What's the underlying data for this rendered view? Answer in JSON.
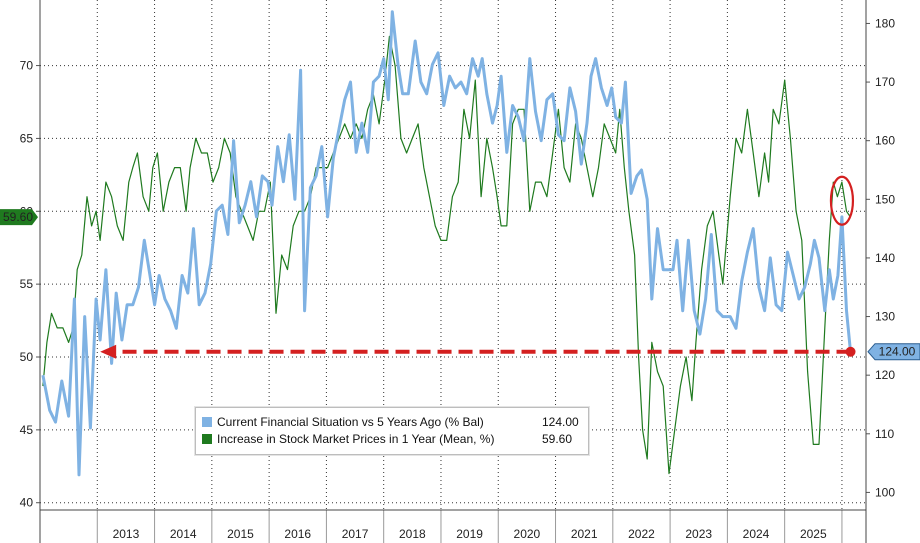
{
  "chart_data": {
    "type": "line",
    "x_axis": {
      "type": "time",
      "labels": [
        "2013",
        "2014",
        "2015",
        "2016",
        "2017",
        "2018",
        "2019",
        "2020",
        "2021",
        "2022",
        "2023",
        "2024",
        "2025"
      ]
    },
    "left_axis": {
      "ticks": [
        40,
        45,
        50,
        55,
        60,
        65,
        70
      ],
      "ylim": [
        39.5,
        74.5
      ]
    },
    "right_axis": {
      "ticks": [
        100,
        110,
        120,
        130,
        140,
        150,
        160,
        170,
        180
      ],
      "ylim": [
        97,
        184
      ]
    },
    "grid": true,
    "legend": {
      "placement": "bottom-center"
    },
    "series": [
      {
        "name": "Current Financial Situation vs 5 Years Ago (% Bal)",
        "axis": "right",
        "color": "#7fb2e3",
        "last_value_label": "124.00",
        "points": [
          [
            2012.05,
            120
          ],
          [
            2012.17,
            114
          ],
          [
            2012.27,
            112
          ],
          [
            2012.38,
            119
          ],
          [
            2012.5,
            113
          ],
          [
            2012.6,
            133
          ],
          [
            2012.68,
            103
          ],
          [
            2012.78,
            130
          ],
          [
            2012.88,
            111
          ],
          [
            2012.98,
            133
          ],
          [
            2013.05,
            126
          ],
          [
            2013.15,
            138
          ],
          [
            2013.25,
            122
          ],
          [
            2013.33,
            134
          ],
          [
            2013.43,
            126
          ],
          [
            2013.52,
            132
          ],
          [
            2013.62,
            132
          ],
          [
            2013.72,
            135
          ],
          [
            2013.82,
            143
          ],
          [
            2013.92,
            137
          ],
          [
            2014.0,
            132
          ],
          [
            2014.08,
            137
          ],
          [
            2014.18,
            133
          ],
          [
            2014.28,
            131
          ],
          [
            2014.38,
            128
          ],
          [
            2014.48,
            137
          ],
          [
            2014.58,
            134
          ],
          [
            2014.68,
            145
          ],
          [
            2014.78,
            132
          ],
          [
            2014.88,
            134
          ],
          [
            2014.98,
            139
          ],
          [
            2015.08,
            148
          ],
          [
            2015.18,
            149
          ],
          [
            2015.28,
            144
          ],
          [
            2015.38,
            160
          ],
          [
            2015.48,
            146
          ],
          [
            2015.58,
            149
          ],
          [
            2015.68,
            153
          ],
          [
            2015.78,
            147
          ],
          [
            2015.88,
            154
          ],
          [
            2015.98,
            153
          ],
          [
            2016.05,
            149
          ],
          [
            2016.15,
            159
          ],
          [
            2016.25,
            153
          ],
          [
            2016.35,
            161
          ],
          [
            2016.45,
            150
          ],
          [
            2016.55,
            172
          ],
          [
            2016.62,
            131
          ],
          [
            2016.72,
            152
          ],
          [
            2016.82,
            154
          ],
          [
            2016.92,
            159
          ],
          [
            2017.02,
            147
          ],
          [
            2017.12,
            157
          ],
          [
            2017.22,
            162
          ],
          [
            2017.32,
            167
          ],
          [
            2017.42,
            170
          ],
          [
            2017.52,
            158
          ],
          [
            2017.62,
            163
          ],
          [
            2017.72,
            158
          ],
          [
            2017.82,
            170
          ],
          [
            2017.92,
            171
          ],
          [
            2018.0,
            174
          ],
          [
            2018.08,
            167
          ],
          [
            2018.15,
            182
          ],
          [
            2018.25,
            173
          ],
          [
            2018.33,
            168
          ],
          [
            2018.43,
            168
          ],
          [
            2018.55,
            177
          ],
          [
            2018.65,
            170
          ],
          [
            2018.75,
            168
          ],
          [
            2018.85,
            173
          ],
          [
            2018.95,
            175
          ],
          [
            2019.05,
            166
          ],
          [
            2019.15,
            171
          ],
          [
            2019.25,
            169
          ],
          [
            2019.35,
            170
          ],
          [
            2019.45,
            168
          ],
          [
            2019.55,
            174
          ],
          [
            2019.65,
            171
          ],
          [
            2019.72,
            174
          ],
          [
            2019.8,
            168
          ],
          [
            2019.9,
            163
          ],
          [
            2019.98,
            166
          ],
          [
            2020.05,
            171
          ],
          [
            2020.15,
            158
          ],
          [
            2020.25,
            166
          ],
          [
            2020.35,
            164
          ],
          [
            2020.45,
            160
          ],
          [
            2020.55,
            174
          ],
          [
            2020.65,
            165
          ],
          [
            2020.75,
            160
          ],
          [
            2020.85,
            167
          ],
          [
            2020.95,
            168
          ],
          [
            2021.05,
            161
          ],
          [
            2021.15,
            160
          ],
          [
            2021.25,
            169
          ],
          [
            2021.35,
            165
          ],
          [
            2021.45,
            156
          ],
          [
            2021.55,
            163
          ],
          [
            2021.62,
            171
          ],
          [
            2021.7,
            174
          ],
          [
            2021.8,
            169
          ],
          [
            2021.9,
            166
          ],
          [
            2021.98,
            169
          ],
          [
            2022.05,
            164
          ],
          [
            2022.15,
            163
          ],
          [
            2022.22,
            170
          ],
          [
            2022.32,
            151
          ],
          [
            2022.42,
            154
          ],
          [
            2022.5,
            155
          ],
          [
            2022.6,
            150
          ],
          [
            2022.68,
            133
          ],
          [
            2022.78,
            145
          ],
          [
            2022.88,
            138
          ],
          [
            2022.98,
            138
          ],
          [
            2023.05,
            138
          ],
          [
            2023.12,
            143
          ],
          [
            2023.22,
            131
          ],
          [
            2023.32,
            143
          ],
          [
            2023.42,
            131
          ],
          [
            2023.52,
            127
          ],
          [
            2023.62,
            133
          ],
          [
            2023.72,
            144
          ],
          [
            2023.82,
            131
          ],
          [
            2023.92,
            130
          ],
          [
            2024.05,
            130
          ],
          [
            2024.15,
            128
          ],
          [
            2024.25,
            136
          ],
          [
            2024.35,
            141
          ],
          [
            2024.45,
            145
          ],
          [
            2024.55,
            135
          ],
          [
            2024.65,
            131
          ],
          [
            2024.75,
            140
          ],
          [
            2024.85,
            132
          ],
          [
            2024.95,
            131
          ],
          [
            2025.05,
            141
          ],
          [
            2025.15,
            137
          ],
          [
            2025.25,
            133
          ],
          [
            2025.35,
            135
          ],
          [
            2025.45,
            139
          ],
          [
            2025.52,
            143
          ],
          [
            2025.6,
            140
          ],
          [
            2025.7,
            131
          ],
          [
            2025.78,
            138
          ],
          [
            2025.85,
            133
          ],
          [
            2025.93,
            137
          ],
          [
            2026.0,
            147
          ],
          [
            2026.08,
            131
          ],
          [
            2026.15,
            124
          ]
        ]
      },
      {
        "name": "Increase in Stock Market Prices in 1 Year (Mean, %)",
        "axis": "left",
        "color": "#1f7a1f",
        "last_value_label": "59.60",
        "points": [
          [
            2012.05,
            48
          ],
          [
            2012.12,
            51
          ],
          [
            2012.2,
            53
          ],
          [
            2012.3,
            52
          ],
          [
            2012.4,
            52
          ],
          [
            2012.5,
            51
          ],
          [
            2012.58,
            52
          ],
          [
            2012.65,
            56
          ],
          [
            2012.73,
            57
          ],
          [
            2012.82,
            61
          ],
          [
            2012.9,
            59
          ],
          [
            2012.98,
            60
          ],
          [
            2013.05,
            58
          ],
          [
            2013.15,
            62
          ],
          [
            2013.25,
            61
          ],
          [
            2013.35,
            59
          ],
          [
            2013.45,
            58
          ],
          [
            2013.55,
            62
          ],
          [
            2013.62,
            63
          ],
          [
            2013.7,
            64
          ],
          [
            2013.8,
            61
          ],
          [
            2013.9,
            60
          ],
          [
            2013.97,
            63
          ],
          [
            2014.05,
            64
          ],
          [
            2014.15,
            60
          ],
          [
            2014.25,
            62
          ],
          [
            2014.35,
            63
          ],
          [
            2014.45,
            63
          ],
          [
            2014.55,
            60
          ],
          [
            2014.62,
            63
          ],
          [
            2014.72,
            65
          ],
          [
            2014.82,
            64
          ],
          [
            2014.92,
            64
          ],
          [
            2015.02,
            62
          ],
          [
            2015.12,
            63
          ],
          [
            2015.22,
            65
          ],
          [
            2015.32,
            64
          ],
          [
            2015.42,
            61
          ],
          [
            2015.52,
            60
          ],
          [
            2015.62,
            59
          ],
          [
            2015.72,
            58
          ],
          [
            2015.82,
            60
          ],
          [
            2015.92,
            60
          ],
          [
            2016.02,
            62
          ],
          [
            2016.12,
            53
          ],
          [
            2016.22,
            57
          ],
          [
            2016.32,
            56
          ],
          [
            2016.42,
            59
          ],
          [
            2016.52,
            60
          ],
          [
            2016.62,
            60
          ],
          [
            2016.72,
            61
          ],
          [
            2016.82,
            63
          ],
          [
            2016.92,
            63
          ],
          [
            2017.02,
            63
          ],
          [
            2017.12,
            64
          ],
          [
            2017.22,
            65
          ],
          [
            2017.32,
            66
          ],
          [
            2017.42,
            65
          ],
          [
            2017.52,
            66
          ],
          [
            2017.62,
            65
          ],
          [
            2017.72,
            67
          ],
          [
            2017.82,
            68
          ],
          [
            2017.92,
            66
          ],
          [
            2018.02,
            69
          ],
          [
            2018.1,
            72
          ],
          [
            2018.2,
            70
          ],
          [
            2018.3,
            65
          ],
          [
            2018.4,
            64
          ],
          [
            2018.5,
            65
          ],
          [
            2018.6,
            66
          ],
          [
            2018.7,
            63
          ],
          [
            2018.8,
            61
          ],
          [
            2018.9,
            59
          ],
          [
            2019.0,
            58
          ],
          [
            2019.1,
            58
          ],
          [
            2019.2,
            61
          ],
          [
            2019.3,
            62
          ],
          [
            2019.4,
            67
          ],
          [
            2019.5,
            65
          ],
          [
            2019.6,
            69
          ],
          [
            2019.7,
            61
          ],
          [
            2019.8,
            65
          ],
          [
            2019.9,
            63
          ],
          [
            2019.98,
            61
          ],
          [
            2020.05,
            59
          ],
          [
            2020.15,
            59
          ],
          [
            2020.25,
            66
          ],
          [
            2020.35,
            67
          ],
          [
            2020.45,
            67
          ],
          [
            2020.55,
            60
          ],
          [
            2020.65,
            62
          ],
          [
            2020.75,
            62
          ],
          [
            2020.85,
            61
          ],
          [
            2020.95,
            64
          ],
          [
            2021.05,
            67
          ],
          [
            2021.15,
            63
          ],
          [
            2021.25,
            62
          ],
          [
            2021.35,
            66
          ],
          [
            2021.45,
            65
          ],
          [
            2021.55,
            63
          ],
          [
            2021.65,
            61
          ],
          [
            2021.75,
            63
          ],
          [
            2021.85,
            66
          ],
          [
            2021.95,
            65
          ],
          [
            2022.05,
            64
          ],
          [
            2022.12,
            67
          ],
          [
            2022.2,
            63
          ],
          [
            2022.28,
            60
          ],
          [
            2022.38,
            57
          ],
          [
            2022.45,
            50
          ],
          [
            2022.52,
            45
          ],
          [
            2022.6,
            43
          ],
          [
            2022.68,
            51
          ],
          [
            2022.78,
            49
          ],
          [
            2022.88,
            48
          ],
          [
            2022.98,
            42
          ],
          [
            2023.08,
            45
          ],
          [
            2023.18,
            48
          ],
          [
            2023.28,
            50
          ],
          [
            2023.38,
            47
          ],
          [
            2023.45,
            51
          ],
          [
            2023.55,
            56
          ],
          [
            2023.65,
            59
          ],
          [
            2023.75,
            60
          ],
          [
            2023.85,
            57
          ],
          [
            2023.92,
            55
          ],
          [
            2024.05,
            61
          ],
          [
            2024.15,
            65
          ],
          [
            2024.25,
            64
          ],
          [
            2024.35,
            67
          ],
          [
            2024.45,
            64
          ],
          [
            2024.55,
            61
          ],
          [
            2024.65,
            64
          ],
          [
            2024.72,
            62
          ],
          [
            2024.8,
            67
          ],
          [
            2024.9,
            66
          ],
          [
            2025.0,
            69
          ],
          [
            2025.1,
            65
          ],
          [
            2025.2,
            60
          ],
          [
            2025.3,
            58
          ],
          [
            2025.4,
            49
          ],
          [
            2025.5,
            44
          ],
          [
            2025.6,
            44
          ],
          [
            2025.7,
            52
          ],
          [
            2025.78,
            58
          ],
          [
            2025.85,
            62
          ],
          [
            2025.92,
            61
          ],
          [
            2026.0,
            62
          ],
          [
            2026.08,
            60
          ],
          [
            2026.15,
            59.6
          ]
        ]
      }
    ],
    "annotations": [
      {
        "type": "dashed-arrow",
        "color": "#d42020",
        "axis": "right",
        "level": 124,
        "from_x": 2026.15,
        "to_x": 2013.05
      },
      {
        "type": "circle",
        "color": "#d42020",
        "x": 2026.0,
        "axis": "left",
        "y": 61
      }
    ]
  }
}
